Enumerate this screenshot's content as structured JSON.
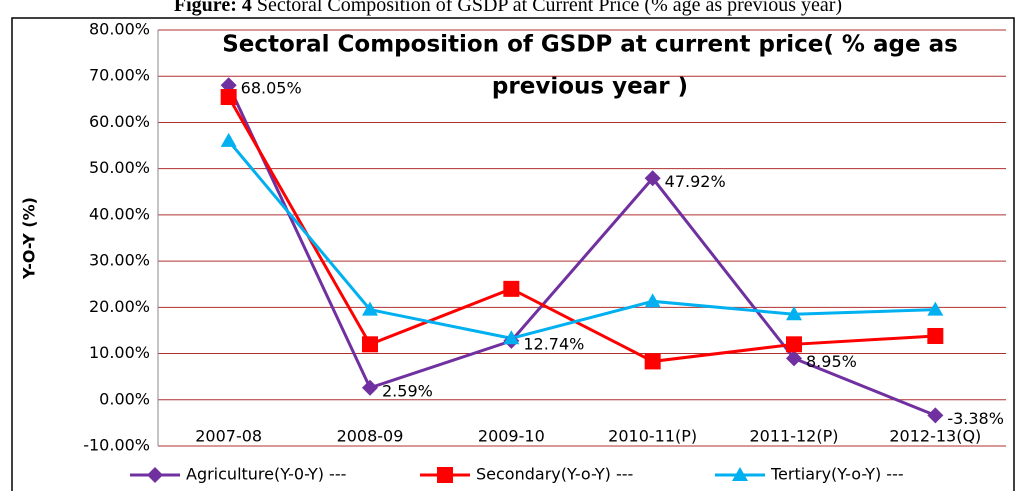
{
  "figure_label": "Figure: 4",
  "caption": "Sectoral Composition of GSDP at Current Price (% age as previous year)",
  "chart_data": {
    "type": "line",
    "title_lines": [
      "Sectoral Composition of GSDP at current price( % age as",
      "previous year )"
    ],
    "y_label": "Y-O-Y (%)",
    "categories": [
      "2007-08",
      "2008-09",
      "2009-10",
      "2010-11(P)",
      "2011-12(P)",
      "2012-13(Q)"
    ],
    "series": [
      {
        "name": "Agriculture(Y-0-Y) ---",
        "color": "#7030a0",
        "marker": "diamond",
        "values": [
          68.05,
          2.59,
          12.74,
          47.92,
          8.95,
          -3.38
        ],
        "value_labels": [
          "68.05%",
          "2.59%",
          "12.74%",
          "47.92%",
          "8.95%",
          "-3.38%"
        ]
      },
      {
        "name": "Secondary(Y-o-Y) ---",
        "color": "#ff0000",
        "marker": "square",
        "values": [
          65.5,
          12,
          24,
          8.3,
          12,
          13.8
        ]
      },
      {
        "name": "Tertiary(Y-o-Y) ---",
        "color": "#00b0f0",
        "marker": "triangle",
        "values": [
          56,
          19.5,
          13.3,
          21.3,
          18.5,
          19.5
        ]
      }
    ],
    "ylim": [
      -10,
      80
    ],
    "yticks": [
      {
        "value": -10,
        "label": "-10.00%"
      },
      {
        "value": 0,
        "label": "0.00%"
      },
      {
        "value": 10,
        "label": "10.00%"
      },
      {
        "value": 20,
        "label": "20.00%"
      },
      {
        "value": 30,
        "label": "30.00%"
      },
      {
        "value": 40,
        "label": "40.00%"
      },
      {
        "value": 50,
        "label": "50.00%"
      },
      {
        "value": 60,
        "label": "60.00%"
      },
      {
        "value": 70,
        "label": "70.00%"
      },
      {
        "value": 80,
        "label": "80.00%"
      }
    ],
    "grid": true,
    "grid_color": "#b03030",
    "legend": "bottom"
  }
}
